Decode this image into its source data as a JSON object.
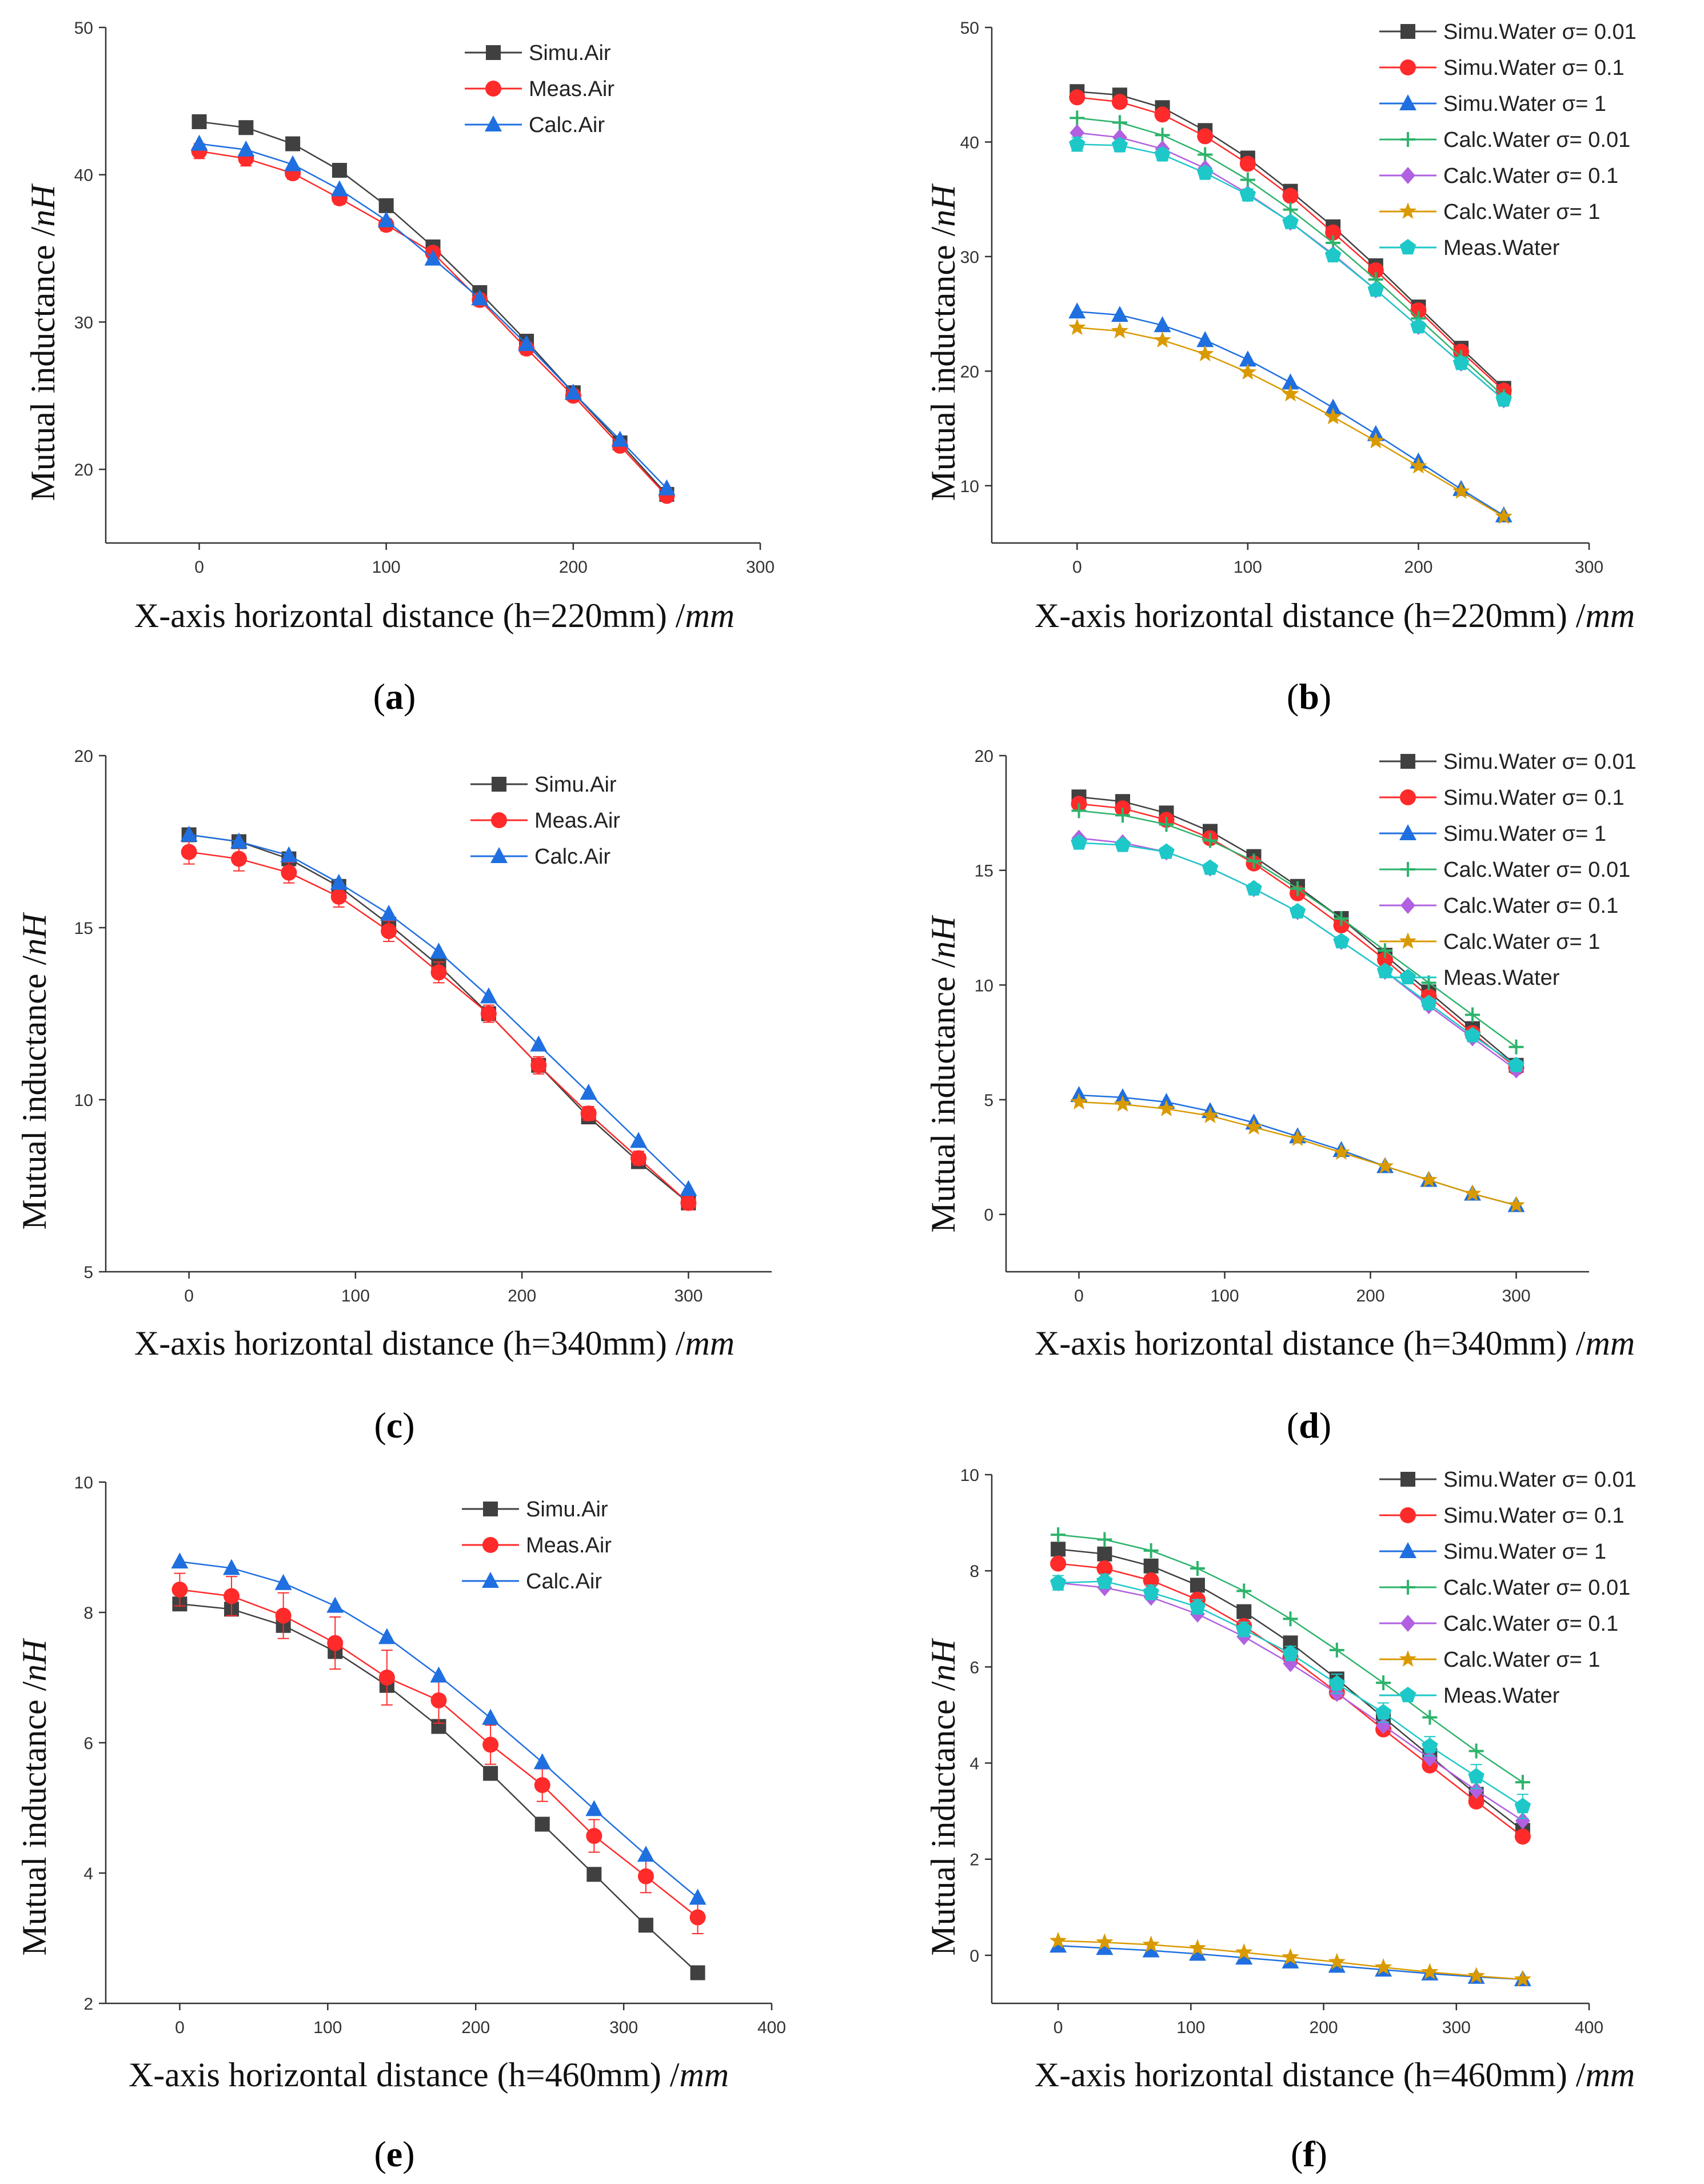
{
  "figure": {
    "colors": {
      "simu": "#404040",
      "meas": "#ff2a2a",
      "calc": "#1f6fe0",
      "calc001": "#2db36b",
      "calc01": "#b060e0",
      "calc1": "#d99a00",
      "measWater": "#1ec8c8"
    }
  },
  "chart_data": [
    {
      "panel": "a",
      "type": "line",
      "label_open": "(",
      "label_letter": "a",
      "label_close": ")",
      "ylabel": "Mutual inductance /",
      "ylabel_unit": "nH",
      "xlabel": "X-axis horizontal distance (h=220mm) /",
      "xlabel_unit": "mm",
      "xlim": [
        -50,
        300
      ],
      "ylim": [
        15,
        50
      ],
      "xticks": [
        0,
        100,
        200,
        300
      ],
      "yticks": [
        20,
        30,
        40,
        50
      ],
      "x": [
        0,
        25,
        50,
        75,
        100,
        125,
        150,
        175,
        200,
        225,
        250
      ],
      "series": [
        {
          "name": "Simu.Air",
          "marker": "square",
          "color": "#404040",
          "values": [
            43.6,
            43.2,
            42.1,
            40.3,
            37.9,
            35.1,
            32.0,
            28.7,
            25.2,
            21.8,
            18.3
          ]
        },
        {
          "name": "Meas.Air",
          "marker": "circle",
          "color": "#ff2a2a",
          "values": [
            41.6,
            41.1,
            40.1,
            38.4,
            36.6,
            34.7,
            31.5,
            28.2,
            25.0,
            21.6,
            18.2
          ],
          "errors": [
            0.5,
            0.5,
            0.4,
            0.4,
            0.4,
            0.4,
            0.4,
            0.4,
            0.3,
            0.3,
            0.3
          ]
        },
        {
          "name": "Calc.Air",
          "marker": "triangle",
          "color": "#1f6fe0",
          "values": [
            42.1,
            41.7,
            40.7,
            39.0,
            36.9,
            34.3,
            31.6,
            28.5,
            25.2,
            22.0,
            18.7
          ]
        }
      ]
    },
    {
      "panel": "b",
      "type": "line",
      "label_open": "(",
      "label_letter": "b",
      "label_close": ")",
      "ylabel": "Mutual inductance /",
      "ylabel_unit": "nH",
      "xlabel": "X-axis horizontal distance (h=220mm) /",
      "xlabel_unit": "mm",
      "xlim": [
        -50,
        300
      ],
      "ylim": [
        5,
        50
      ],
      "xticks": [
        0,
        100,
        200,
        300
      ],
      "yticks": [
        10,
        20,
        30,
        40,
        50
      ],
      "x": [
        0,
        25,
        50,
        75,
        100,
        125,
        150,
        175,
        200,
        225,
        250
      ],
      "series": [
        {
          "name": "Simu.Water σ= 0.01",
          "marker": "square",
          "color": "#404040",
          "values": [
            44.4,
            44.1,
            43.0,
            41.0,
            38.6,
            35.7,
            32.6,
            29.2,
            25.6,
            22.0,
            18.5
          ]
        },
        {
          "name": "Simu.Water σ= 0.1",
          "marker": "circle",
          "color": "#ff2a2a",
          "values": [
            43.9,
            43.5,
            42.4,
            40.5,
            38.1,
            35.3,
            32.1,
            28.8,
            25.3,
            21.7,
            18.3
          ]
        },
        {
          "name": "Simu.Water σ= 1",
          "marker": "triangle",
          "color": "#1f6fe0",
          "values": [
            25.2,
            24.9,
            24.0,
            22.7,
            21.0,
            19.0,
            16.8,
            14.5,
            12.1,
            9.7,
            7.4
          ]
        },
        {
          "name": "Calc.Water σ= 0.01",
          "marker": "plus",
          "color": "#2db36b",
          "values": [
            42.1,
            41.7,
            40.6,
            38.9,
            36.7,
            34.1,
            31.2,
            28.0,
            24.6,
            21.2,
            17.8
          ]
        },
        {
          "name": "Calc.Water σ= 0.1",
          "marker": "diamond",
          "color": "#b060e0",
          "values": [
            40.8,
            40.4,
            39.4,
            37.7,
            35.5,
            33.0,
            30.2,
            27.1,
            23.9,
            20.7,
            17.5
          ]
        },
        {
          "name": "Calc.Water σ= 1",
          "marker": "star",
          "color": "#d99a00",
          "values": [
            23.8,
            23.5,
            22.7,
            21.5,
            19.9,
            18.0,
            16.0,
            13.9,
            11.7,
            9.5,
            7.3
          ]
        },
        {
          "name": "Meas.Water",
          "marker": "pentagon",
          "color": "#1ec8c8",
          "values": [
            39.8,
            39.7,
            38.9,
            37.3,
            35.4,
            33.0,
            30.1,
            27.1,
            23.9,
            20.7,
            17.5
          ],
          "errors": [
            0.6,
            0.5,
            0.5,
            0.5,
            0.5,
            0.4,
            0.4,
            0.4,
            0.4,
            0.4,
            0.4
          ]
        }
      ]
    },
    {
      "panel": "c",
      "type": "line",
      "label_open": "(",
      "label_letter": "c",
      "label_close": ")",
      "ylabel": "Mutual inductance /",
      "ylabel_unit": "nH",
      "xlabel": "X-axis horizontal distance (h=340mm) /",
      "xlabel_unit": "mm",
      "xlim": [
        -50,
        350
      ],
      "ylim": [
        5,
        20
      ],
      "xticks": [
        0,
        100,
        200,
        300
      ],
      "yticks": [
        5,
        10,
        15,
        20
      ],
      "x": [
        0,
        30,
        60,
        90,
        120,
        150,
        180,
        210,
        240,
        270,
        300
      ],
      "series": [
        {
          "name": "Simu.Air",
          "marker": "square",
          "color": "#404040",
          "values": [
            17.7,
            17.5,
            17.0,
            16.2,
            15.1,
            13.9,
            12.5,
            11.0,
            9.5,
            8.2,
            7.0
          ]
        },
        {
          "name": "Meas.Air",
          "marker": "circle",
          "color": "#ff2a2a",
          "values": [
            17.2,
            17.0,
            16.6,
            15.9,
            14.9,
            13.7,
            12.5,
            11.0,
            9.6,
            8.3,
            7.0
          ],
          "errors": [
            0.35,
            0.35,
            0.3,
            0.3,
            0.3,
            0.3,
            0.25,
            0.25,
            0.2,
            0.2,
            0.2
          ]
        },
        {
          "name": "Calc.Air",
          "marker": "triangle",
          "color": "#1f6fe0",
          "values": [
            17.7,
            17.5,
            17.1,
            16.3,
            15.4,
            14.3,
            13.0,
            11.6,
            10.2,
            8.8,
            7.4
          ]
        }
      ]
    },
    {
      "panel": "d",
      "type": "line",
      "label_open": "(",
      "label_letter": "d",
      "label_close": ")",
      "ylabel": "Mutual inductance /",
      "ylabel_unit": "nH",
      "xlabel": "X-axis horizontal distance (h=340mm) /",
      "xlabel_unit": "mm",
      "xlim": [
        -50,
        350
      ],
      "ylim": [
        -2.5,
        20
      ],
      "xticks": [
        0,
        100,
        200,
        300
      ],
      "yticks": [
        0,
        5,
        10,
        15,
        20
      ],
      "x": [
        0,
        30,
        60,
        90,
        120,
        150,
        180,
        210,
        240,
        270,
        300
      ],
      "series": [
        {
          "name": "Simu.Water σ= 0.01",
          "marker": "square",
          "color": "#404040",
          "values": [
            18.2,
            18.0,
            17.5,
            16.7,
            15.6,
            14.3,
            12.9,
            11.3,
            9.7,
            8.1,
            6.5
          ]
        },
        {
          "name": "Simu.Water σ= 0.1",
          "marker": "circle",
          "color": "#ff2a2a",
          "values": [
            17.9,
            17.7,
            17.2,
            16.4,
            15.3,
            14.0,
            12.6,
            11.1,
            9.5,
            7.9,
            6.4
          ]
        },
        {
          "name": "Simu.Water σ= 1",
          "marker": "triangle",
          "color": "#1f6fe0",
          "values": [
            5.2,
            5.1,
            4.9,
            4.5,
            4.0,
            3.4,
            2.8,
            2.1,
            1.5,
            0.9,
            0.4
          ]
        },
        {
          "name": "Calc.Water σ= 0.01",
          "marker": "plus",
          "color": "#2db36b",
          "values": [
            17.6,
            17.4,
            17.0,
            16.3,
            15.4,
            14.2,
            12.9,
            11.5,
            10.1,
            8.7,
            7.3
          ]
        },
        {
          "name": "Calc.Water σ= 0.1",
          "marker": "diamond",
          "color": "#b060e0",
          "values": [
            16.4,
            16.2,
            15.8,
            15.1,
            14.2,
            13.2,
            11.9,
            10.6,
            9.1,
            7.7,
            6.3
          ]
        },
        {
          "name": "Calc.Water σ= 1",
          "marker": "star",
          "color": "#d99a00",
          "values": [
            4.9,
            4.8,
            4.6,
            4.3,
            3.8,
            3.3,
            2.7,
            2.1,
            1.5,
            0.9,
            0.4
          ]
        },
        {
          "name": "Meas.Water",
          "marker": "pentagon",
          "color": "#1ec8c8",
          "values": [
            16.2,
            16.1,
            15.8,
            15.1,
            14.2,
            13.2,
            11.9,
            10.6,
            9.2,
            7.8,
            6.5
          ],
          "errors": [
            0.2,
            0.2,
            0.2,
            0.2,
            0.2,
            0.2,
            0.2,
            0.2,
            0.2,
            0.2,
            0.2
          ]
        }
      ]
    },
    {
      "panel": "e",
      "type": "line",
      "label_open": "(",
      "label_letter": "e",
      "label_close": ")",
      "ylabel": "Mutual inductance /",
      "ylabel_unit": "nH",
      "xlabel": "X-axis horizontal distance (h=460mm) /",
      "xlabel_unit": "mm",
      "xlim": [
        -50,
        400
      ],
      "ylim": [
        2,
        10
      ],
      "xticks": [
        0,
        100,
        200,
        300,
        400
      ],
      "yticks": [
        2,
        4,
        6,
        8,
        10
      ],
      "x": [
        0,
        35,
        70,
        105,
        140,
        175,
        210,
        245,
        280,
        315,
        350
      ],
      "series": [
        {
          "name": "Simu.Air",
          "marker": "square",
          "color": "#404040",
          "values": [
            8.13,
            8.05,
            7.8,
            7.4,
            6.88,
            6.25,
            5.53,
            4.75,
            3.98,
            3.2,
            2.47
          ]
        },
        {
          "name": "Meas.Air",
          "marker": "circle",
          "color": "#ff2a2a",
          "values": [
            8.35,
            8.25,
            7.95,
            7.53,
            7.0,
            6.65,
            5.97,
            5.35,
            4.57,
            3.95,
            3.32
          ],
          "errors": [
            0.25,
            0.3,
            0.35,
            0.4,
            0.42,
            0.35,
            0.3,
            0.25,
            0.25,
            0.25,
            0.25
          ]
        },
        {
          "name": "Calc.Air",
          "marker": "triangle",
          "color": "#1f6fe0",
          "values": [
            8.78,
            8.68,
            8.45,
            8.1,
            7.62,
            7.03,
            6.38,
            5.7,
            4.98,
            4.28,
            3.62
          ]
        }
      ]
    },
    {
      "panel": "f",
      "type": "line",
      "label_open": "(",
      "label_letter": "f",
      "label_close": ")",
      "ylabel": "Mutual inductance /",
      "ylabel_unit": "nH",
      "xlabel": "X-axis horizontal distance (h=460mm) /",
      "xlabel_unit": "mm",
      "xlim": [
        -50,
        400
      ],
      "ylim": [
        -1,
        10
      ],
      "xticks": [
        0,
        100,
        200,
        300,
        400
      ],
      "yticks": [
        0,
        2,
        4,
        6,
        8,
        10
      ],
      "x": [
        0,
        35,
        70,
        105,
        140,
        175,
        210,
        245,
        280,
        315,
        350
      ],
      "series": [
        {
          "name": "Simu.Water σ= 0.01",
          "marker": "square",
          "color": "#404040",
          "values": [
            8.45,
            8.35,
            8.1,
            7.7,
            7.15,
            6.5,
            5.75,
            4.95,
            4.15,
            3.35,
            2.6
          ]
        },
        {
          "name": "Simu.Water σ= 0.1",
          "marker": "circle",
          "color": "#ff2a2a",
          "values": [
            8.15,
            8.05,
            7.8,
            7.4,
            6.85,
            6.2,
            5.47,
            4.7,
            3.95,
            3.2,
            2.47
          ]
        },
        {
          "name": "Simu.Water σ= 1",
          "marker": "triangle",
          "color": "#1f6fe0",
          "values": [
            0.2,
            0.15,
            0.1,
            0.03,
            -0.05,
            -0.13,
            -0.22,
            -0.3,
            -0.38,
            -0.45,
            -0.5
          ]
        },
        {
          "name": "Calc.Water σ= 0.01",
          "marker": "plus",
          "color": "#2db36b",
          "values": [
            8.75,
            8.65,
            8.42,
            8.05,
            7.58,
            7.0,
            6.35,
            5.67,
            4.95,
            4.25,
            3.6
          ]
        },
        {
          "name": "Calc.Water σ= 0.1",
          "marker": "diamond",
          "color": "#b060e0",
          "values": [
            7.75,
            7.65,
            7.45,
            7.1,
            6.63,
            6.07,
            5.45,
            4.78,
            4.1,
            3.43,
            2.8
          ]
        },
        {
          "name": "Calc.Water σ= 1",
          "marker": "star",
          "color": "#d99a00",
          "values": [
            0.3,
            0.27,
            0.22,
            0.15,
            0.06,
            -0.04,
            -0.14,
            -0.25,
            -0.35,
            -0.43,
            -0.5
          ]
        },
        {
          "name": "Meas.Water",
          "marker": "pentagon",
          "color": "#1ec8c8",
          "values": [
            7.75,
            7.78,
            7.55,
            7.25,
            6.78,
            6.28,
            5.65,
            5.05,
            4.35,
            3.72,
            3.1
          ],
          "errors": [
            0.15,
            0.15,
            0.15,
            0.15,
            0.15,
            0.15,
            0.2,
            0.2,
            0.2,
            0.25,
            0.25
          ]
        }
      ]
    }
  ]
}
